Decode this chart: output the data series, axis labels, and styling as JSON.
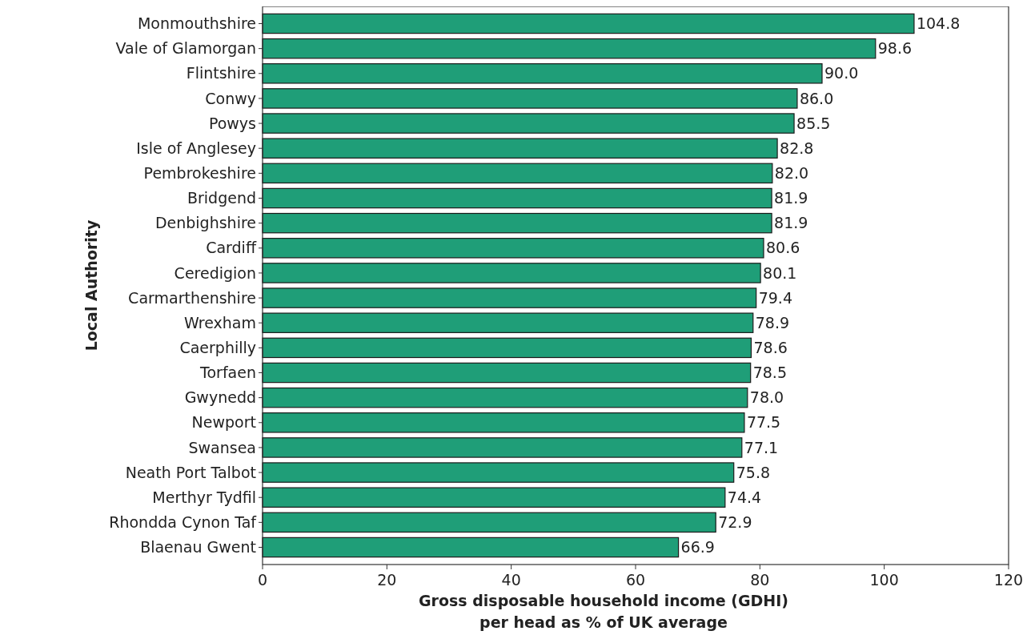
{
  "chart_data": {
    "type": "bar",
    "orientation": "horizontal",
    "xlabel": "Gross disposable household income (GDHI)\nper head as % of UK average",
    "ylabel": "Local Authority",
    "categories": [
      "Monmouthshire",
      "Vale of Glamorgan",
      "Flintshire",
      "Conwy",
      "Powys",
      "Isle of Anglesey",
      "Pembrokeshire",
      "Bridgend",
      "Denbighshire",
      "Cardiff",
      "Ceredigion",
      "Carmarthenshire",
      "Wrexham",
      "Caerphilly",
      "Torfaen",
      "Gwynedd",
      "Newport",
      "Swansea",
      "Neath Port Talbot",
      "Merthyr Tydfil",
      "Rhondda Cynon Taf",
      "Blaenau Gwent"
    ],
    "values": [
      104.8,
      98.6,
      90.0,
      86.0,
      85.5,
      82.8,
      82.0,
      81.9,
      81.9,
      80.6,
      80.1,
      79.4,
      78.9,
      78.6,
      78.5,
      78.0,
      77.5,
      77.1,
      75.8,
      74.4,
      72.9,
      66.9
    ],
    "value_labels": [
      "104.8",
      "98.6",
      "90.0",
      "86.0",
      "85.5",
      "82.8",
      "82.0",
      "81.9",
      "81.9",
      "80.6",
      "80.1",
      "79.4",
      "78.9",
      "78.6",
      "78.5",
      "78.0",
      "77.5",
      "77.1",
      "75.8",
      "74.4",
      "72.9",
      "66.9"
    ],
    "color": "#1f9e78",
    "xlim": [
      0,
      120
    ],
    "xticks": [
      0,
      20,
      40,
      60,
      80,
      100,
      120
    ],
    "grid": false
  }
}
